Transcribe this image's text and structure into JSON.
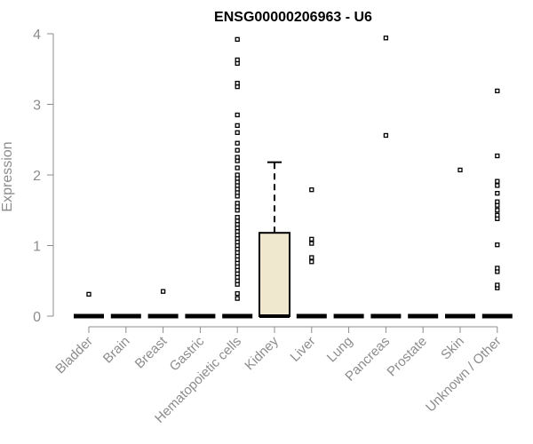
{
  "chart_data": {
    "type": "boxplot",
    "title": "ENSG00000206963 - U6",
    "ylabel": "Expression",
    "xlabel": "",
    "ylim": [
      0,
      4
    ],
    "yticks": [
      0,
      1,
      2,
      3,
      4
    ],
    "categories": [
      "Bladder",
      "Brain",
      "Breast",
      "Gastric",
      "Hematopoietic cells",
      "Kidney",
      "Liver",
      "Lung",
      "Pancreas",
      "Prostate",
      "Skin",
      "Unknown / Other"
    ],
    "boxes": [
      {
        "category": "Bladder",
        "min": 0,
        "q1": 0,
        "median": 0,
        "q3": 0,
        "max": 0,
        "outliers": [
          0.31
        ]
      },
      {
        "category": "Brain",
        "min": 0,
        "q1": 0,
        "median": 0,
        "q3": 0,
        "max": 0,
        "outliers": []
      },
      {
        "category": "Breast",
        "min": 0,
        "q1": 0,
        "median": 0,
        "q3": 0,
        "max": 0,
        "outliers": [
          0.35
        ]
      },
      {
        "category": "Gastric",
        "min": 0,
        "q1": 0,
        "median": 0,
        "q3": 0,
        "max": 0,
        "outliers": []
      },
      {
        "category": "Hematopoietic cells",
        "min": 0,
        "q1": 0,
        "median": 0,
        "q3": 0,
        "max": 0,
        "outliers": [
          0.25,
          0.32,
          0.45,
          0.5,
          0.55,
          0.6,
          0.65,
          0.7,
          0.75,
          0.8,
          0.85,
          0.9,
          0.95,
          1.0,
          1.05,
          1.1,
          1.15,
          1.2,
          1.25,
          1.3,
          1.35,
          1.4,
          1.5,
          1.55,
          1.6,
          1.7,
          1.75,
          1.8,
          1.85,
          1.9,
          1.95,
          2.0,
          2.1,
          2.2,
          2.25,
          2.35,
          2.45,
          2.6,
          2.7,
          2.85,
          3.25,
          3.3,
          3.58,
          3.63,
          3.92
        ]
      },
      {
        "category": "Kidney",
        "min": 0,
        "q1": 0,
        "median": 0,
        "q3": 1.18,
        "max": 2.18,
        "outliers": []
      },
      {
        "category": "Liver",
        "min": 0,
        "q1": 0,
        "median": 0,
        "q3": 0,
        "max": 0,
        "outliers": [
          0.77,
          0.83,
          1.03,
          1.09,
          1.79
        ]
      },
      {
        "category": "Lung",
        "min": 0,
        "q1": 0,
        "median": 0,
        "q3": 0,
        "max": 0,
        "outliers": []
      },
      {
        "category": "Pancreas",
        "min": 0,
        "q1": 0,
        "median": 0,
        "q3": 0,
        "max": 0,
        "outliers": [
          2.56,
          3.94
        ]
      },
      {
        "category": "Prostate",
        "min": 0,
        "q1": 0,
        "median": 0,
        "q3": 0,
        "max": 0,
        "outliers": []
      },
      {
        "category": "Skin",
        "min": 0,
        "q1": 0,
        "median": 0,
        "q3": 0,
        "max": 0,
        "outliers": [
          2.07
        ]
      },
      {
        "category": "Unknown / Other",
        "min": 0,
        "q1": 0,
        "median": 0,
        "q3": 0,
        "max": 0,
        "outliers": [
          0.4,
          0.44,
          0.63,
          0.68,
          1.01,
          1.38,
          1.43,
          1.5,
          1.57,
          1.62,
          1.74,
          1.85,
          1.91,
          2.27,
          3.19
        ]
      }
    ],
    "colors": {
      "box_fill": "#efe8cf",
      "stroke": "#000000",
      "axis": "#8c8c8c"
    },
    "grid": false,
    "legend": "none"
  }
}
